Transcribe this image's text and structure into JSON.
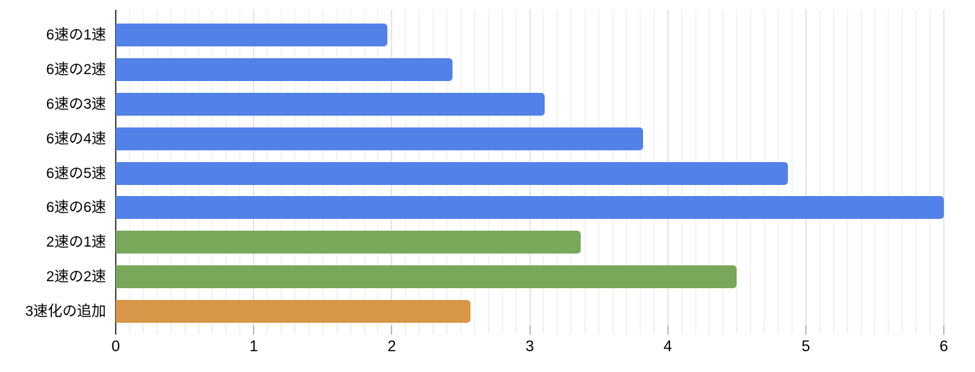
{
  "chart_data": {
    "type": "bar",
    "orientation": "horizontal",
    "title": "",
    "categories": [
      "6速の1速",
      "6速の2速",
      "6速の3速",
      "6速の4速",
      "6速の5速",
      "6速の6速",
      "2速の1速",
      "2速の2速",
      "3速化の追加"
    ],
    "values": [
      1.97,
      2.44,
      3.11,
      3.82,
      4.87,
      6.0,
      3.37,
      4.5,
      2.57
    ],
    "bar_colors": [
      "#5282e8",
      "#5282e8",
      "#5282e8",
      "#5282e8",
      "#5282e8",
      "#5282e8",
      "#7aa85a",
      "#7aa85a",
      "#d89648"
    ],
    "series_colors": {
      "blue_6speed": "#5282e8",
      "green_2speed": "#7aa85a",
      "orange_3speed_addition": "#d89648"
    },
    "xlabel": "",
    "ylabel": "",
    "xlim": [
      0,
      6
    ],
    "x_ticks": [
      "0",
      "1",
      "2",
      "3",
      "4",
      "5",
      "6"
    ],
    "minor_grid_step": 0.1,
    "grid": true,
    "legend": "none",
    "axis_color": "#424242",
    "major_grid_color": "#cccccc",
    "minor_grid_color": "#e9e9e9",
    "minor_tick_color": "#e3e3e3",
    "major_tick_color": "#757575",
    "label_color": "#000000"
  }
}
